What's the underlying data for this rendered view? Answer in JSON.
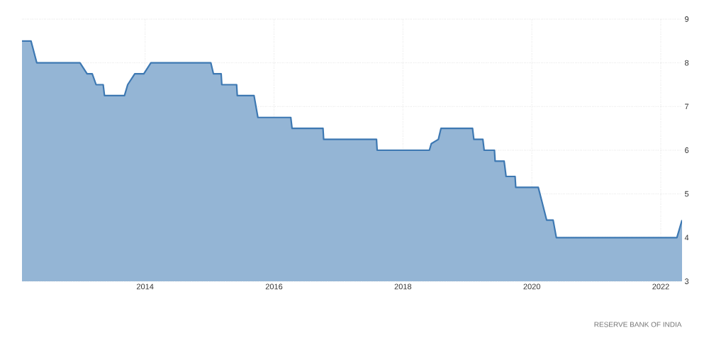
{
  "chart_data": {
    "type": "area",
    "x": [
      2012.09,
      2012.23,
      2012.32,
      2012.99,
      2013.1,
      2013.18,
      2013.24,
      2013.35,
      2013.37,
      2013.68,
      2013.73,
      2013.84,
      2013.98,
      2014.09,
      2015.02,
      2015.06,
      2015.18,
      2015.19,
      2015.42,
      2015.43,
      2015.69,
      2015.75,
      2016.26,
      2016.28,
      2016.76,
      2016.77,
      2017.59,
      2017.6,
      2018.41,
      2018.44,
      2018.55,
      2018.59,
      2019.08,
      2019.1,
      2019.24,
      2019.26,
      2019.42,
      2019.43,
      2019.57,
      2019.6,
      2019.74,
      2019.75,
      2020.1,
      2020.23,
      2020.33,
      2020.38,
      2022.25,
      2022.33
    ],
    "series": [
      {
        "color": "#3d78b2",
        "values": [
          8.5,
          8.5,
          8.0,
          8.0,
          7.75,
          7.75,
          7.5,
          7.5,
          7.25,
          7.25,
          7.5,
          7.75,
          7.75,
          8.0,
          8.0,
          7.75,
          7.75,
          7.5,
          7.5,
          7.25,
          7.25,
          6.75,
          6.75,
          6.5,
          6.5,
          6.25,
          6.25,
          6.0,
          6.0,
          6.15,
          6.25,
          6.5,
          6.5,
          6.25,
          6.25,
          6.0,
          6.0,
          5.75,
          5.75,
          5.4,
          5.4,
          5.15,
          5.15,
          4.4,
          4.4,
          4.0,
          4.0,
          4.4
        ]
      }
    ],
    "xlim": [
      2012.09,
      2022.33
    ],
    "ylim": [
      3,
      9
    ],
    "xticks": [
      2014,
      2016,
      2018,
      2020,
      2022
    ],
    "yticks": [
      3,
      4,
      5,
      6,
      7,
      8,
      9
    ],
    "grid": true,
    "annotations": [
      "RESERVE BANK OF INDIA"
    ]
  }
}
